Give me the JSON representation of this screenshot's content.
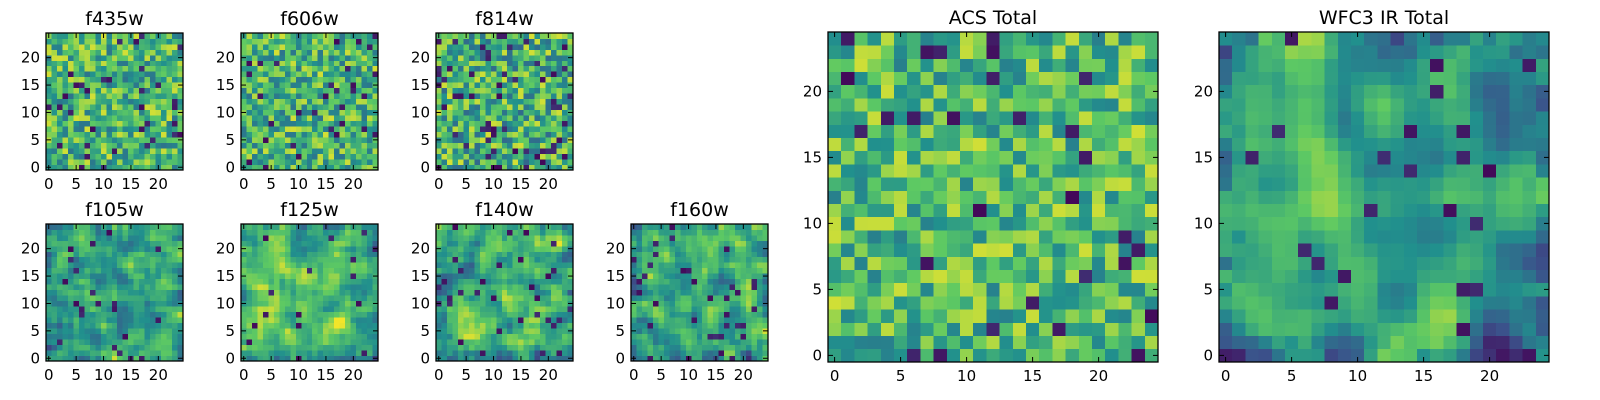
{
  "figure": {
    "background": "#ffffff",
    "colormap": "viridis",
    "colormap_stops": [
      "#440154",
      "#3b528b",
      "#21908d",
      "#5dc963",
      "#fde725"
    ]
  },
  "chart_data": [
    {
      "type": "heatmap",
      "title": "f435w",
      "grid_size": [
        25,
        25
      ],
      "xlim": [
        0,
        24
      ],
      "ylim": [
        0,
        24
      ],
      "xticks": [
        0,
        5,
        10,
        15,
        20
      ],
      "yticks": [
        0,
        5,
        10,
        15,
        20
      ],
      "seed": 11,
      "bias": 0.66,
      "contrast": 0.55,
      "smooth": 0,
      "dark_fraction": 0.05,
      "edge_dark": 0
    },
    {
      "type": "heatmap",
      "title": "f606w",
      "grid_size": [
        25,
        25
      ],
      "xlim": [
        0,
        24
      ],
      "ylim": [
        0,
        24
      ],
      "xticks": [
        0,
        5,
        10,
        15,
        20
      ],
      "yticks": [
        0,
        5,
        10,
        15,
        20
      ],
      "seed": 23,
      "bias": 0.66,
      "contrast": 0.55,
      "smooth": 0,
      "dark_fraction": 0.05,
      "edge_dark": 0
    },
    {
      "type": "heatmap",
      "title": "f814w",
      "grid_size": [
        25,
        25
      ],
      "xlim": [
        0,
        24
      ],
      "ylim": [
        0,
        24
      ],
      "xticks": [
        0,
        5,
        10,
        15,
        20
      ],
      "yticks": [
        0,
        5,
        10,
        15,
        20
      ],
      "seed": 37,
      "bias": 0.64,
      "contrast": 0.6,
      "smooth": 0,
      "dark_fraction": 0.07,
      "edge_dark": 0
    },
    {
      "type": "heatmap",
      "title": "f105w",
      "grid_size": [
        25,
        25
      ],
      "xlim": [
        0,
        24
      ],
      "ylim": [
        0,
        24
      ],
      "xticks": [
        0,
        5,
        10,
        15,
        20
      ],
      "yticks": [
        0,
        5,
        10,
        15,
        20
      ],
      "seed": 41,
      "bias": 0.62,
      "contrast": 0.65,
      "smooth": 1,
      "dark_fraction": 0.04,
      "edge_dark": 0.1
    },
    {
      "type": "heatmap",
      "title": "f125w",
      "grid_size": [
        25,
        25
      ],
      "xlim": [
        0,
        24
      ],
      "ylim": [
        0,
        24
      ],
      "xticks": [
        0,
        5,
        10,
        15,
        20
      ],
      "yticks": [
        0,
        5,
        10,
        15,
        20
      ],
      "seed": 53,
      "bias": 0.66,
      "contrast": 0.65,
      "smooth": 1,
      "dark_fraction": 0.04,
      "edge_dark": 0.15
    },
    {
      "type": "heatmap",
      "title": "f140w",
      "grid_size": [
        25,
        25
      ],
      "xlim": [
        0,
        24
      ],
      "ylim": [
        0,
        24
      ],
      "xticks": [
        0,
        5,
        10,
        15,
        20
      ],
      "yticks": [
        0,
        5,
        10,
        15,
        20
      ],
      "seed": 67,
      "bias": 0.62,
      "contrast": 0.7,
      "smooth": 1,
      "dark_fraction": 0.05,
      "edge_dark": 0.12
    },
    {
      "type": "heatmap",
      "title": "f160w",
      "grid_size": [
        25,
        25
      ],
      "xlim": [
        0,
        24
      ],
      "ylim": [
        0,
        24
      ],
      "xticks": [
        0,
        5,
        10,
        15,
        20
      ],
      "yticks": [
        0,
        5,
        10,
        15,
        20
      ],
      "seed": 79,
      "bias": 0.6,
      "contrast": 0.7,
      "smooth": 1,
      "dark_fraction": 0.05,
      "edge_dark": 0.18
    },
    {
      "type": "heatmap",
      "title": "ACS Total",
      "grid_size": [
        25,
        25
      ],
      "xlim": [
        0,
        24
      ],
      "ylim": [
        0,
        24
      ],
      "xticks": [
        0,
        5,
        10,
        15,
        20
      ],
      "yticks": [
        0,
        5,
        10,
        15,
        20
      ],
      "seed": 97,
      "bias": 0.68,
      "contrast": 0.5,
      "smooth": 0,
      "dark_fraction": 0.035,
      "edge_dark": 0
    },
    {
      "type": "heatmap",
      "title": "WFC3 IR Total",
      "grid_size": [
        25,
        25
      ],
      "xlim": [
        0,
        24
      ],
      "ylim": [
        0,
        24
      ],
      "xticks": [
        0,
        5,
        10,
        15,
        20
      ],
      "yticks": [
        0,
        5,
        10,
        15,
        20
      ],
      "seed": 131,
      "bias": 0.58,
      "contrast": 0.8,
      "smooth": 2,
      "dark_fraction": 0.035,
      "edge_dark": 0.3
    }
  ]
}
